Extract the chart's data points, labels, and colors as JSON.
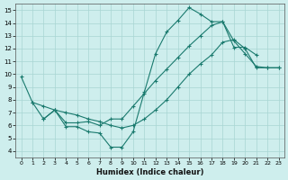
{
  "xlabel": "Humidex (Indice chaleur)",
  "xlim": [
    -0.5,
    23.5
  ],
  "ylim": [
    3.5,
    15.5
  ],
  "xticks": [
    0,
    1,
    2,
    3,
    4,
    5,
    6,
    7,
    8,
    9,
    10,
    11,
    12,
    13,
    14,
    15,
    16,
    17,
    18,
    19,
    20,
    21,
    22,
    23
  ],
  "yticks": [
    4,
    5,
    6,
    7,
    8,
    9,
    10,
    11,
    12,
    13,
    14,
    15
  ],
  "bg_color": "#ceeeed",
  "grid_color": "#a8d5d3",
  "line_color": "#1a7a6e",
  "line1_x": [
    0,
    1,
    2,
    3,
    4,
    5,
    6,
    7,
    8,
    9,
    10,
    11,
    12,
    13,
    14,
    15,
    16,
    17,
    18,
    19,
    20,
    21
  ],
  "line1_y": [
    9.8,
    7.8,
    6.5,
    7.2,
    5.9,
    5.9,
    5.5,
    5.4,
    4.3,
    4.3,
    5.5,
    8.6,
    11.6,
    13.3,
    14.2,
    15.2,
    14.7,
    14.1,
    14.1,
    12.1,
    12.1,
    11.5
  ],
  "line2_x": [
    1,
    2,
    3,
    4,
    5,
    6,
    7,
    8,
    9,
    10,
    11,
    12,
    13,
    14,
    15,
    16,
    17,
    18,
    19,
    20,
    21,
    22,
    23
  ],
  "line2_y": [
    7.8,
    7.5,
    7.2,
    7.0,
    6.8,
    6.5,
    6.3,
    6.0,
    5.8,
    6.0,
    6.5,
    7.2,
    8.0,
    9.0,
    10.0,
    10.8,
    11.5,
    12.5,
    12.7,
    12.0,
    10.5,
    10.5,
    10.5
  ],
  "line3_x": [
    2,
    3,
    4,
    5,
    6,
    7,
    8,
    9,
    10,
    11,
    12,
    13,
    14,
    15,
    16,
    17,
    18,
    19,
    20,
    21,
    22,
    23
  ],
  "line3_y": [
    6.5,
    7.2,
    6.2,
    6.2,
    6.3,
    6.0,
    6.5,
    6.5,
    7.5,
    8.5,
    9.5,
    10.4,
    11.3,
    12.2,
    13.0,
    13.8,
    14.1,
    12.6,
    11.6,
    10.6,
    10.5,
    10.5
  ]
}
